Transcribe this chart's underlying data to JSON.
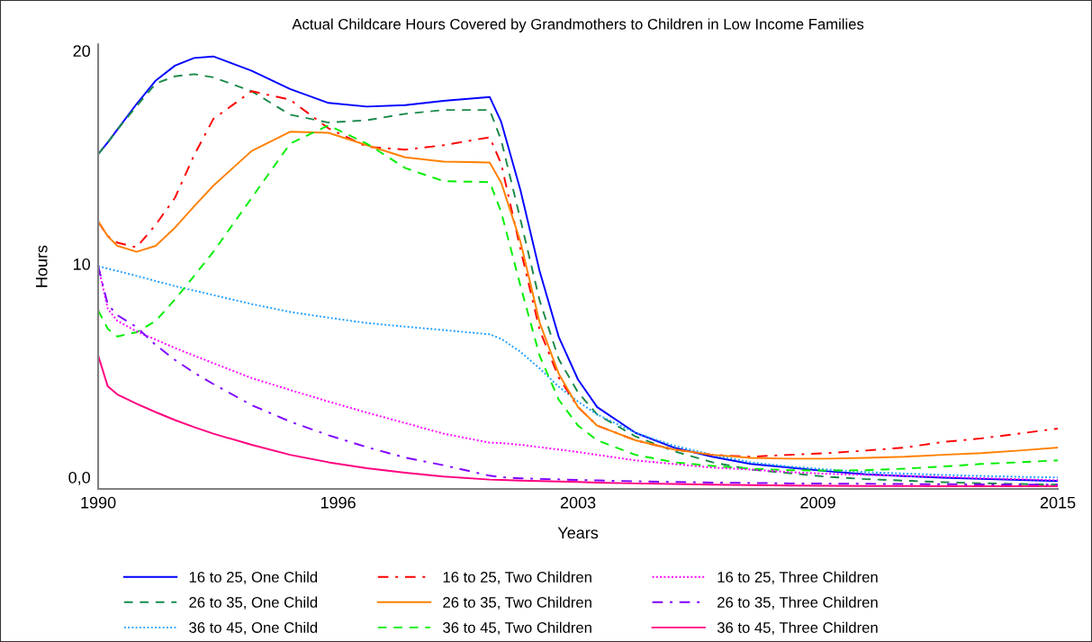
{
  "chart_data": {
    "type": "line",
    "title": "Actual Childcare Hours Covered by Grandmothers to Children in Low Income Families",
    "xlabel": "Years",
    "ylabel": "Hours",
    "x": [
      1990,
      1990.25,
      1990.5,
      1991,
      1991.5,
      1992,
      1992.5,
      1993,
      1994,
      1995,
      1996,
      1997,
      1998,
      1999,
      2000.2,
      2000.5,
      2001,
      2001.5,
      2002,
      2002.5,
      2003,
      2004,
      2005,
      2006,
      2007,
      2008,
      2009,
      2010,
      2011,
      2012,
      2013,
      2014,
      2015
    ],
    "xlim": [
      1990,
      2015
    ],
    "xticks": [
      1990,
      {
        "value": 1996.25,
        "label": "1996"
      },
      {
        "value": 2002.5,
        "label": "2003"
      },
      {
        "value": 2008.75,
        "label": "2009"
      },
      2015
    ],
    "ylim": [
      -0.55,
      20.3
    ],
    "yticks": [
      {
        "value": 0,
        "label": "0,0"
      },
      10,
      20
    ],
    "grid": false,
    "legend": "bottom",
    "marker": "none",
    "series": [
      {
        "name": "16 to 25, One Child",
        "color": "#0000ff",
        "line_style": "solid",
        "values": [
          15.15,
          15.7,
          16.3,
          17.5,
          18.6,
          19.3,
          19.66,
          19.73,
          19.06,
          18.2,
          17.55,
          17.38,
          17.45,
          17.65,
          17.83,
          16.66,
          13.47,
          9.67,
          6.57,
          4.58,
          3.29,
          2.08,
          1.39,
          0.96,
          0.62,
          0.45,
          0.28,
          0.14,
          0.05,
          -0.02,
          -0.08,
          -0.13,
          -0.18
        ]
      },
      {
        "name": "26 to 35, One Child",
        "color": "#1a8a4a",
        "line_style": "dashed",
        "values": [
          15.15,
          15.7,
          16.3,
          17.4,
          18.46,
          18.8,
          18.9,
          18.75,
          18.1,
          17.0,
          16.63,
          16.74,
          17.04,
          17.22,
          17.22,
          15.8,
          12.09,
          8.29,
          5.53,
          3.98,
          2.94,
          1.91,
          1.22,
          0.7,
          0.36,
          0.19,
          0.02,
          -0.09,
          -0.16,
          -0.23,
          -0.28,
          -0.32,
          -0.35
        ]
      },
      {
        "name": "36 to 45, One Child",
        "color": "#1e9fff",
        "line_style": "dotted",
        "values": [
          9.9,
          9.78,
          9.67,
          9.44,
          9.2,
          8.96,
          8.75,
          8.54,
          8.12,
          7.75,
          7.48,
          7.23,
          7.06,
          6.9,
          6.7,
          6.49,
          5.88,
          5.1,
          4.24,
          3.55,
          2.94,
          2.08,
          1.48,
          1.05,
          0.7,
          0.5,
          0.36,
          0.24,
          0.17,
          0.11,
          0.06,
          0.02,
          -0.01
        ]
      },
      {
        "name": "16 to 25, Two Children",
        "color": "#ff0000",
        "line_style": "dashdot",
        "values": [
          11.98,
          11.3,
          11.0,
          10.78,
          11.84,
          13.1,
          15.1,
          16.8,
          18.1,
          17.7,
          16.36,
          15.5,
          15.36,
          15.57,
          15.94,
          14.69,
          10.71,
          6.91,
          4.67,
          3.29,
          2.42,
          1.73,
          1.3,
          1.05,
          0.96,
          1.05,
          1.13,
          1.25,
          1.39,
          1.65,
          1.82,
          2.05,
          2.28
        ]
      },
      {
        "name": "26 to 35, Two Children",
        "color": "#ff8000",
        "line_style": "solid",
        "values": [
          12.0,
          11.3,
          10.85,
          10.57,
          10.85,
          11.7,
          12.7,
          13.67,
          15.3,
          16.2,
          16.15,
          15.57,
          15.0,
          14.8,
          14.76,
          13.81,
          11.05,
          7.26,
          4.84,
          3.29,
          2.42,
          1.73,
          1.3,
          1.05,
          0.91,
          0.87,
          0.87,
          0.91,
          0.96,
          1.05,
          1.13,
          1.25,
          1.39
        ]
      },
      {
        "name": "36 to 45, Two Children",
        "color": "#00ee00",
        "line_style": "dashed",
        "values": [
          7.82,
          6.96,
          6.6,
          6.8,
          7.33,
          8.33,
          9.44,
          10.57,
          13.1,
          15.64,
          16.5,
          15.64,
          14.5,
          13.88,
          13.84,
          12.43,
          8.98,
          5.7,
          3.63,
          2.42,
          1.73,
          1.05,
          0.7,
          0.53,
          0.4,
          0.33,
          0.31,
          0.33,
          0.4,
          0.5,
          0.62,
          0.7,
          0.79
        ]
      },
      {
        "name": "16 to 25, Three Children",
        "color": "#ff00ff",
        "line_style": "dotted",
        "values": [
          9.9,
          7.9,
          7.33,
          6.84,
          6.45,
          6.06,
          5.7,
          5.35,
          4.65,
          4.09,
          3.55,
          3.03,
          2.54,
          2.04,
          1.62,
          1.6,
          1.52,
          1.41,
          1.3,
          1.18,
          1.05,
          0.79,
          0.62,
          0.45,
          0.36,
          0.24,
          0.16,
          0.11,
          0.06,
          0.02,
          -0.04,
          -0.09,
          -0.14
        ]
      },
      {
        "name": "26 to 35, Three Children",
        "color": "#8000ff",
        "line_style": "dashdot",
        "values": [
          9.9,
          8.1,
          7.6,
          7.04,
          6.2,
          5.5,
          4.9,
          4.37,
          3.38,
          2.61,
          1.97,
          1.41,
          0.92,
          0.56,
          0.07,
          0.0,
          -0.05,
          -0.08,
          -0.1,
          -0.13,
          -0.15,
          -0.19,
          -0.22,
          -0.25,
          -0.27,
          -0.29,
          -0.3,
          -0.31,
          -0.32,
          -0.33,
          -0.34,
          -0.35,
          -0.35
        ]
      },
      {
        "name": "36 to 45, Three Children",
        "color": "#ff0080",
        "line_style": "solid",
        "values": [
          5.71,
          4.26,
          3.88,
          3.45,
          3.05,
          2.68,
          2.35,
          2.04,
          1.52,
          1.05,
          0.7,
          0.42,
          0.21,
          0.03,
          -0.11,
          -0.13,
          -0.16,
          -0.18,
          -0.2,
          -0.22,
          -0.25,
          -0.29,
          -0.32,
          -0.35,
          -0.37,
          -0.39,
          -0.4,
          -0.41,
          -0.41,
          -0.42,
          -0.42,
          -0.42,
          -0.42
        ]
      }
    ]
  }
}
